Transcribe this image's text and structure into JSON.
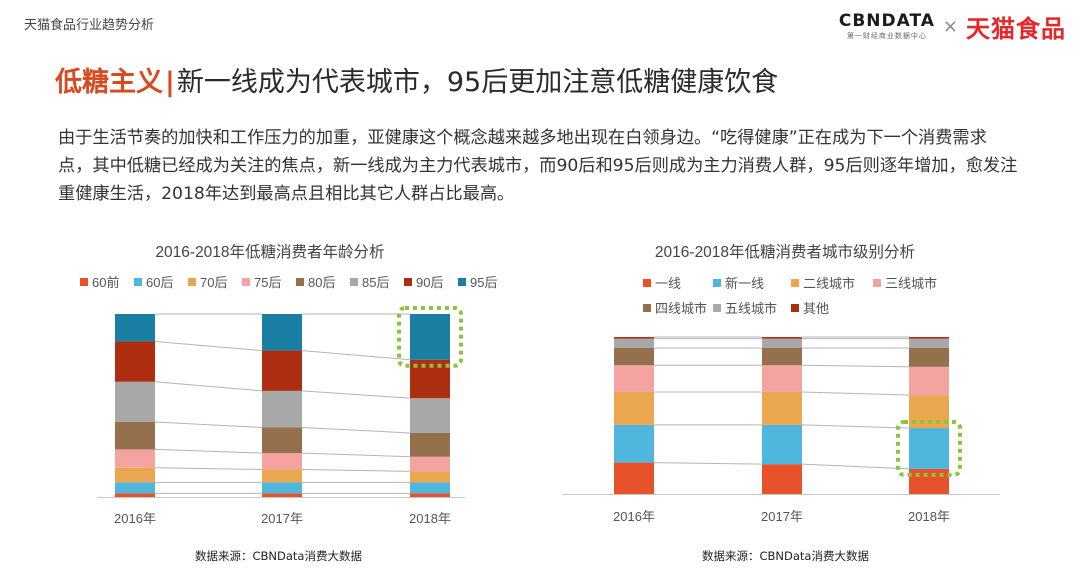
{
  "header": {
    "section_label": "天猫食品行业趋势分析",
    "cbn_logo": "CBNDATA",
    "cbn_sub": "第一财经商业数据中心",
    "separator": "×",
    "tmall_logo": "天猫食品"
  },
  "title": {
    "accent": "低糖主义",
    "bar": "|",
    "main": "新一线成为代表城市，95后更加注意低糖健康饮食"
  },
  "intro": "由于生活节奏的加快和工作压力的加重，亚健康这个概念越来越多地出现在白领身边。“吃得健康”正在成为下一个消费需求点，其中低糖已经成为关注的焦点，新一线成为主力代表城市，而90后和95后则成为主力消费人群，95后则逐年增加，愈发注重健康生活，2018年达到最高点且相比其它人群占比最高。",
  "colors": {
    "accent": "#d94a1f",
    "highlight": "#8cc43f",
    "connector": "#b5b5b5"
  },
  "chart_data": [
    {
      "type": "bar",
      "stacked": true,
      "title": "2016-2018年低糖消费者年龄分析",
      "categories": [
        "2016年",
        "2017年",
        "2018年"
      ],
      "ylim": [
        0,
        100
      ],
      "legend_position": "top",
      "series": [
        {
          "name": "60前",
          "color": "#e8522a",
          "values": [
            2,
            2,
            2
          ]
        },
        {
          "name": "60后",
          "color": "#4fb6dd",
          "values": [
            6,
            6,
            6
          ]
        },
        {
          "name": "70后",
          "color": "#eba650",
          "values": [
            8,
            7,
            6
          ]
        },
        {
          "name": "75后",
          "color": "#f5a3a0",
          "values": [
            10,
            9,
            8
          ]
        },
        {
          "name": "80后",
          "color": "#95704c",
          "values": [
            15,
            14,
            13
          ]
        },
        {
          "name": "85后",
          "color": "#a8a8a8",
          "values": [
            22,
            20,
            19
          ]
        },
        {
          "name": "90后",
          "color": "#ad2e10",
          "values": [
            22,
            22,
            21
          ]
        },
        {
          "name": "95后",
          "color": "#1b7ea3",
          "values": [
            15,
            20,
            25
          ]
        }
      ],
      "highlight": {
        "category": "2018年",
        "series": "95后"
      },
      "source": "数据来源：CBNData消费大数据"
    },
    {
      "type": "bar",
      "stacked": true,
      "title": "2016-2018年低糖消费者城市级别分析",
      "categories": [
        "2016年",
        "2017年",
        "2018年"
      ],
      "ylim": [
        0,
        100
      ],
      "legend_position": "top",
      "series": [
        {
          "name": "一线",
          "color": "#e8522a",
          "values": [
            20,
            19,
            16
          ]
        },
        {
          "name": "新一线",
          "color": "#4fb6dd",
          "values": [
            24,
            25,
            26
          ]
        },
        {
          "name": "二线城市",
          "color": "#eba650",
          "values": [
            21,
            21,
            21
          ]
        },
        {
          "name": "三线城市",
          "color": "#f5a3a0",
          "values": [
            17,
            17,
            18
          ]
        },
        {
          "name": "四线城市",
          "color": "#95704c",
          "values": [
            11,
            11,
            12
          ]
        },
        {
          "name": "五线城市",
          "color": "#a8a8a8",
          "values": [
            6,
            6,
            6
          ]
        },
        {
          "name": "其他",
          "color": "#ad2e10",
          "values": [
            1,
            1,
            1
          ]
        }
      ],
      "highlight": {
        "category": "2018年",
        "series": "新一线"
      },
      "source": "数据来源：CBNData消费大数据"
    }
  ]
}
